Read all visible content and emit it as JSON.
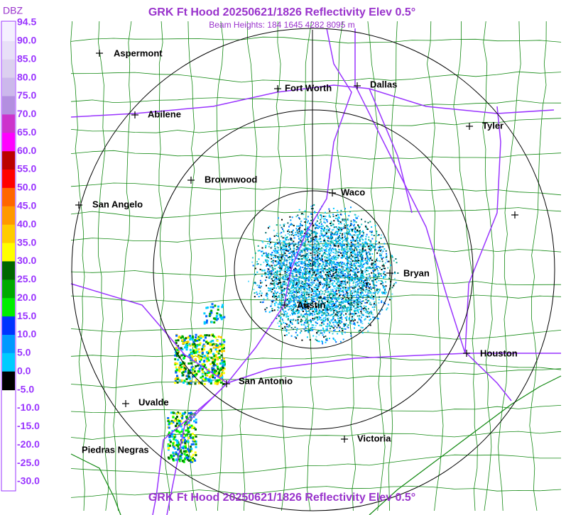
{
  "header": {
    "title": "GRK Ft Hood 20250621/1826 Reflectivity Elev 0.5°",
    "subtitle": "Beam Heights: 184 1645 4282 8095 m"
  },
  "footer": {
    "title": "GRK Ft Hood 20250621/1826 Reflectivity Elev 0.5°"
  },
  "legend": {
    "title": "DBZ",
    "labels": [
      "94.5",
      "90.0",
      "85.0",
      "80.0",
      "75.0",
      "70.0",
      "65.0",
      "60.0",
      "55.0",
      "50.0",
      "45.0",
      "40.0",
      "35.0",
      "30.0",
      "25.0",
      "20.0",
      "15.0",
      "10.0",
      "5.0",
      "0.0",
      "-5.0",
      "-10.0",
      "-15.0",
      "-20.0",
      "-25.0",
      "-30.0"
    ]
  },
  "cities": [
    {
      "label": "Aspermont"
    },
    {
      "label": "Abilene"
    },
    {
      "label": "Fort Worth"
    },
    {
      "label": "Dallas"
    },
    {
      "label": "Tyler"
    },
    {
      "label": "Brownwood"
    },
    {
      "label": "Waco"
    },
    {
      "label": "San Angelo"
    },
    {
      "label": "Bryan"
    },
    {
      "label": "Austin"
    },
    {
      "label": "Houston"
    },
    {
      "label": "San Antonio"
    },
    {
      "label": "Uvalde"
    },
    {
      "label": "Victoria"
    },
    {
      "label": "Piedras Negras"
    }
  ]
}
